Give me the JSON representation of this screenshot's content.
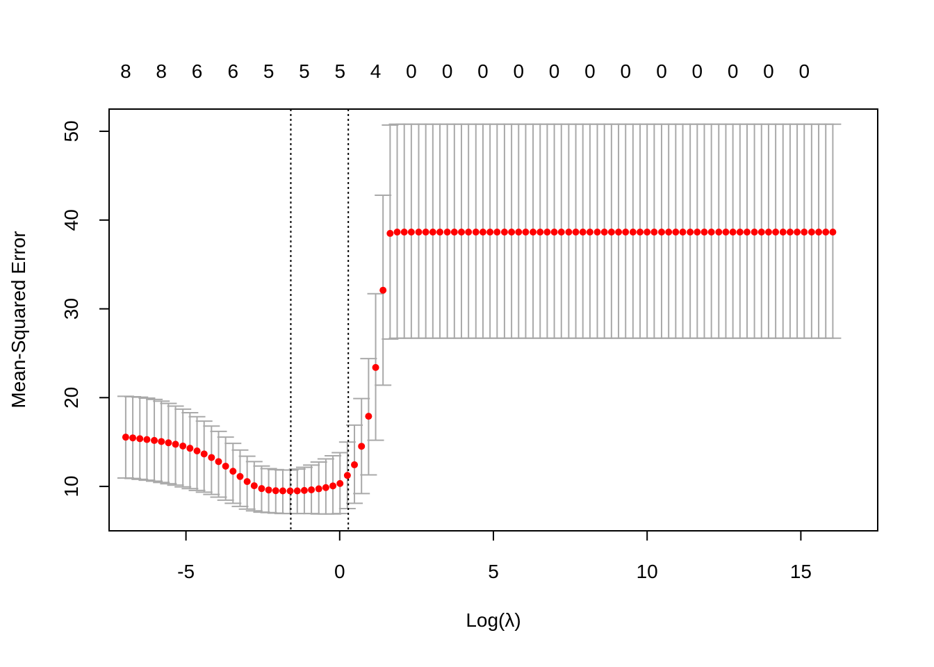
{
  "chart_data": {
    "type": "scatter",
    "title": "",
    "xlabel": "Log(λ)",
    "ylabel": "Mean-Squared Error",
    "xlim": [
      -7.5,
      17.5
    ],
    "ylim": [
      5,
      52.5
    ],
    "x_ticks": [
      -5,
      0,
      5,
      10,
      15
    ],
    "y_ticks": [
      10,
      20,
      30,
      40,
      50
    ],
    "x_tick_labels": [
      "-5",
      "0",
      "5",
      "10",
      "15"
    ],
    "y_tick_labels": [
      "10",
      "20",
      "30",
      "40",
      "50"
    ],
    "top_axis": {
      "positions": [
        -6.96,
        -5.8,
        -4.64,
        -3.47,
        -2.31,
        -1.15,
        0.01,
        1.17,
        2.33,
        3.5,
        4.66,
        5.82,
        6.98,
        8.14,
        9.3,
        10.47,
        11.63,
        12.79,
        13.95,
        15.11
      ],
      "labels": [
        "8",
        "8",
        "6",
        "6",
        "5",
        "5",
        "5",
        "4",
        "0",
        "0",
        "0",
        "0",
        "0",
        "0",
        "0",
        "0",
        "0",
        "0",
        "0",
        "0"
      ]
    },
    "vlines": [
      -1.59,
      0.28
    ],
    "grid": false,
    "series": [
      {
        "point_color": "#FF0000",
        "errorbar_color": "#A9A9A9",
        "x": [
          -6.96,
          -6.73,
          -6.5,
          -6.27,
          -6.03,
          -5.8,
          -5.57,
          -5.34,
          -5.1,
          -4.87,
          -4.64,
          -4.41,
          -4.17,
          -3.94,
          -3.71,
          -3.47,
          -3.24,
          -3.01,
          -2.78,
          -2.54,
          -2.31,
          -2.08,
          -1.85,
          -1.61,
          -1.38,
          -1.15,
          -0.92,
          -0.68,
          -0.45,
          -0.22,
          0.01,
          0.25,
          0.48,
          0.71,
          0.94,
          1.17,
          1.41,
          1.64,
          1.87,
          2.1,
          2.33,
          2.57,
          2.8,
          3.03,
          3.26,
          3.5,
          3.73,
          3.96,
          4.19,
          4.43,
          4.66,
          4.89,
          5.12,
          5.36,
          5.59,
          5.82,
          6.05,
          6.29,
          6.52,
          6.75,
          6.98,
          7.21,
          7.45,
          7.68,
          7.91,
          8.14,
          8.38,
          8.61,
          8.84,
          9.07,
          9.3,
          9.54,
          9.77,
          10.0,
          10.23,
          10.47,
          10.7,
          10.93,
          11.16,
          11.4,
          11.63,
          11.86,
          12.09,
          12.33,
          12.56,
          12.79,
          13.02,
          13.25,
          13.49,
          13.72,
          13.95,
          14.18,
          14.42,
          14.65,
          14.88,
          15.11,
          15.35,
          15.58,
          15.81,
          16.04
        ],
        "y": [
          15.55,
          15.47,
          15.38,
          15.28,
          15.18,
          15.06,
          14.92,
          14.75,
          14.55,
          14.3,
          14.0,
          13.66,
          13.26,
          12.8,
          12.28,
          11.71,
          11.12,
          10.55,
          10.08,
          9.76,
          9.6,
          9.52,
          9.5,
          9.49,
          9.5,
          9.55,
          9.62,
          9.73,
          9.87,
          10.06,
          10.33,
          11.24,
          12.44,
          14.52,
          17.9,
          23.4,
          32.1,
          38.5,
          38.65,
          38.65,
          38.65,
          38.65,
          38.65,
          38.65,
          38.65,
          38.65,
          38.65,
          38.65,
          38.65,
          38.65,
          38.65,
          38.65,
          38.65,
          38.65,
          38.65,
          38.65,
          38.65,
          38.65,
          38.65,
          38.65,
          38.65,
          38.65,
          38.65,
          38.65,
          38.65,
          38.65,
          38.65,
          38.65,
          38.65,
          38.65,
          38.65,
          38.65,
          38.65,
          38.65,
          38.65,
          38.65,
          38.65,
          38.65,
          38.65,
          38.65,
          38.65,
          38.65,
          38.65,
          38.65,
          38.65,
          38.65,
          38.65,
          38.65,
          38.65,
          38.65,
          38.65,
          38.65,
          38.65,
          38.65,
          38.65,
          38.65,
          38.65,
          38.65,
          38.65,
          38.65
        ],
        "upper": [
          20.15,
          20.1,
          20.05,
          19.95,
          19.8,
          19.6,
          19.35,
          19.05,
          18.7,
          18.3,
          17.85,
          17.35,
          16.8,
          16.2,
          15.55,
          14.85,
          14.1,
          13.4,
          12.8,
          12.3,
          12.0,
          11.9,
          11.85,
          11.85,
          11.95,
          12.15,
          12.4,
          12.75,
          13.1,
          13.45,
          13.8,
          15.0,
          16.9,
          19.9,
          24.4,
          31.7,
          42.8,
          50.7,
          50.8,
          50.8,
          50.8,
          50.8,
          50.8,
          50.8,
          50.8,
          50.8,
          50.8,
          50.8,
          50.8,
          50.8,
          50.8,
          50.8,
          50.8,
          50.8,
          50.8,
          50.8,
          50.8,
          50.8,
          50.8,
          50.8,
          50.8,
          50.8,
          50.8,
          50.8,
          50.8,
          50.8,
          50.8,
          50.8,
          50.8,
          50.8,
          50.8,
          50.8,
          50.8,
          50.8,
          50.8,
          50.8,
          50.8,
          50.8,
          50.8,
          50.8,
          50.8,
          50.8,
          50.8,
          50.8,
          50.8,
          50.8,
          50.8,
          50.8,
          50.8,
          50.8,
          50.8,
          50.8,
          50.8,
          50.8,
          50.8,
          50.8,
          50.8,
          50.8,
          50.8,
          50.8
        ],
        "lower": [
          10.95,
          10.9,
          10.8,
          10.7,
          10.6,
          10.45,
          10.3,
          10.15,
          9.95,
          9.75,
          9.55,
          9.35,
          9.1,
          8.8,
          8.45,
          8.1,
          7.75,
          7.45,
          7.25,
          7.1,
          7.05,
          7.0,
          6.95,
          6.95,
          6.95,
          6.95,
          6.95,
          6.9,
          6.9,
          6.9,
          6.95,
          7.5,
          8.1,
          9.2,
          11.3,
          15.2,
          21.4,
          26.6,
          26.7,
          26.7,
          26.7,
          26.7,
          26.7,
          26.7,
          26.7,
          26.7,
          26.7,
          26.7,
          26.7,
          26.7,
          26.7,
          26.7,
          26.7,
          26.7,
          26.7,
          26.7,
          26.7,
          26.7,
          26.7,
          26.7,
          26.7,
          26.7,
          26.7,
          26.7,
          26.7,
          26.7,
          26.7,
          26.7,
          26.7,
          26.7,
          26.7,
          26.7,
          26.7,
          26.7,
          26.7,
          26.7,
          26.7,
          26.7,
          26.7,
          26.7,
          26.7,
          26.7,
          26.7,
          26.7,
          26.7,
          26.7,
          26.7,
          26.7,
          26.7,
          26.7,
          26.7,
          26.7,
          26.7,
          26.7,
          26.7,
          26.7,
          26.7,
          26.7,
          26.7,
          26.7
        ]
      }
    ]
  }
}
